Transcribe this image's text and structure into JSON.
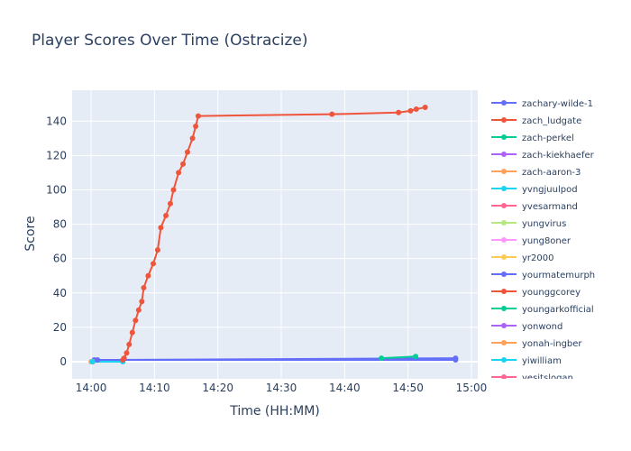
{
  "chart_data": {
    "type": "line",
    "title": "Player Scores Over Time (Ostracize)",
    "xlabel": "Time (HH:MM)",
    "ylabel": "Score",
    "x_ticks": [
      "14:00",
      "14:10",
      "14:20",
      "14:30",
      "14:40",
      "14:50",
      "15:00"
    ],
    "x_tick_minutes": [
      0,
      10,
      20,
      30,
      40,
      50,
      60
    ],
    "xlim_minutes": [
      -3,
      61
    ],
    "ylim": [
      -10,
      158
    ],
    "y_ticks": [
      0,
      20,
      40,
      60,
      80,
      100,
      120,
      140
    ],
    "grid": true,
    "legend_position": "right",
    "series": [
      {
        "name": "zachary-wilde-1",
        "color": "#636efa",
        "x_minutes": [
          0.5,
          57.5
        ],
        "y": [
          1,
          1
        ]
      },
      {
        "name": "zach_ludgate",
        "color": "#EF553B",
        "x_minutes": [],
        "y": []
      },
      {
        "name": "zach-perkel",
        "color": "#00cc96",
        "x_minutes": [],
        "y": []
      },
      {
        "name": "zach-kiekhaefer",
        "color": "#ab63fa",
        "x_minutes": [],
        "y": []
      },
      {
        "name": "zach-aaron-3",
        "color": "#FFA15A",
        "x_minutes": [
          0,
          0.3
        ],
        "y": [
          0,
          0
        ]
      },
      {
        "name": "yvngjuulpod",
        "color": "#19d3f3",
        "x_minutes": [
          0.2,
          5.0
        ],
        "y": [
          0,
          0
        ]
      },
      {
        "name": "yvesarmand",
        "color": "#FF6692",
        "x_minutes": [],
        "y": []
      },
      {
        "name": "yungvirus",
        "color": "#B6E880",
        "x_minutes": [],
        "y": []
      },
      {
        "name": "yung8oner",
        "color": "#FF97FF",
        "x_minutes": [],
        "y": []
      },
      {
        "name": "yr2000",
        "color": "#FECB52",
        "x_minutes": [],
        "y": []
      },
      {
        "name": "yourmatemurph",
        "color": "#636efa",
        "x_minutes": [
          1.0,
          57.5
        ],
        "y": [
          1,
          2
        ]
      },
      {
        "name": "younggcorey",
        "color": "#EF553B",
        "x_minutes": [
          5.0,
          5.2,
          5.6,
          6.0,
          6.5,
          7.0,
          7.5,
          8.0,
          8.3,
          9.0,
          9.8,
          10.5,
          11.0,
          11.8,
          12.5,
          13.0,
          13.8,
          14.5,
          15.2,
          16.0,
          16.5,
          16.9,
          38.0,
          48.5,
          50.4,
          51.3,
          52.7
        ],
        "y": [
          1,
          2,
          5,
          10,
          17,
          24,
          30,
          35,
          43,
          50,
          57,
          65,
          78,
          85,
          92,
          100,
          110,
          115,
          122,
          130,
          137,
          143,
          144,
          145,
          146,
          147,
          148
        ]
      },
      {
        "name": "youngarkofficial",
        "color": "#00cc96",
        "x_minutes": [
          45.8,
          51.2
        ],
        "y": [
          2,
          3
        ]
      },
      {
        "name": "yonwond",
        "color": "#ab63fa",
        "x_minutes": [],
        "y": []
      },
      {
        "name": "yonah-ingber",
        "color": "#FFA15A",
        "x_minutes": [],
        "y": []
      },
      {
        "name": "yiwilliam",
        "color": "#19d3f3",
        "x_minutes": [],
        "y": []
      },
      {
        "name": "yesitslogan",
        "color": "#FF6692",
        "x_minutes": [],
        "y": []
      }
    ]
  }
}
